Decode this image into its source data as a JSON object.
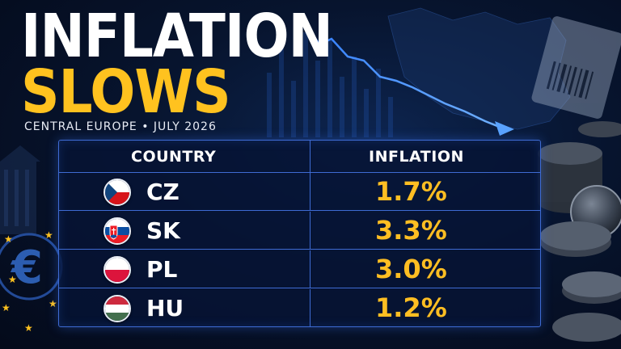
{
  "headline": {
    "line1": "INFLATION",
    "line2": "SLOWS"
  },
  "subtitle": "CENTRAL EUROPE • JULY 2026",
  "table": {
    "headers": {
      "country": "COUNTRY",
      "inflation": "INFLATION"
    },
    "rows": [
      {
        "code": "CZ",
        "value": "1.7%",
        "flag_icon": "czech-flag-icon"
      },
      {
        "code": "SK",
        "value": "3.3%",
        "flag_icon": "slovak-flag-icon"
      },
      {
        "code": "PL",
        "value": "3.0%",
        "flag_icon": "polish-flag-icon"
      },
      {
        "code": "HU",
        "value": "1.2%",
        "flag_icon": "hungarian-flag-icon"
      }
    ]
  },
  "colors": {
    "accent": "#ffc21f",
    "value": "#ffbe22",
    "border": "#3e6bd3",
    "background": "#07142e"
  }
}
